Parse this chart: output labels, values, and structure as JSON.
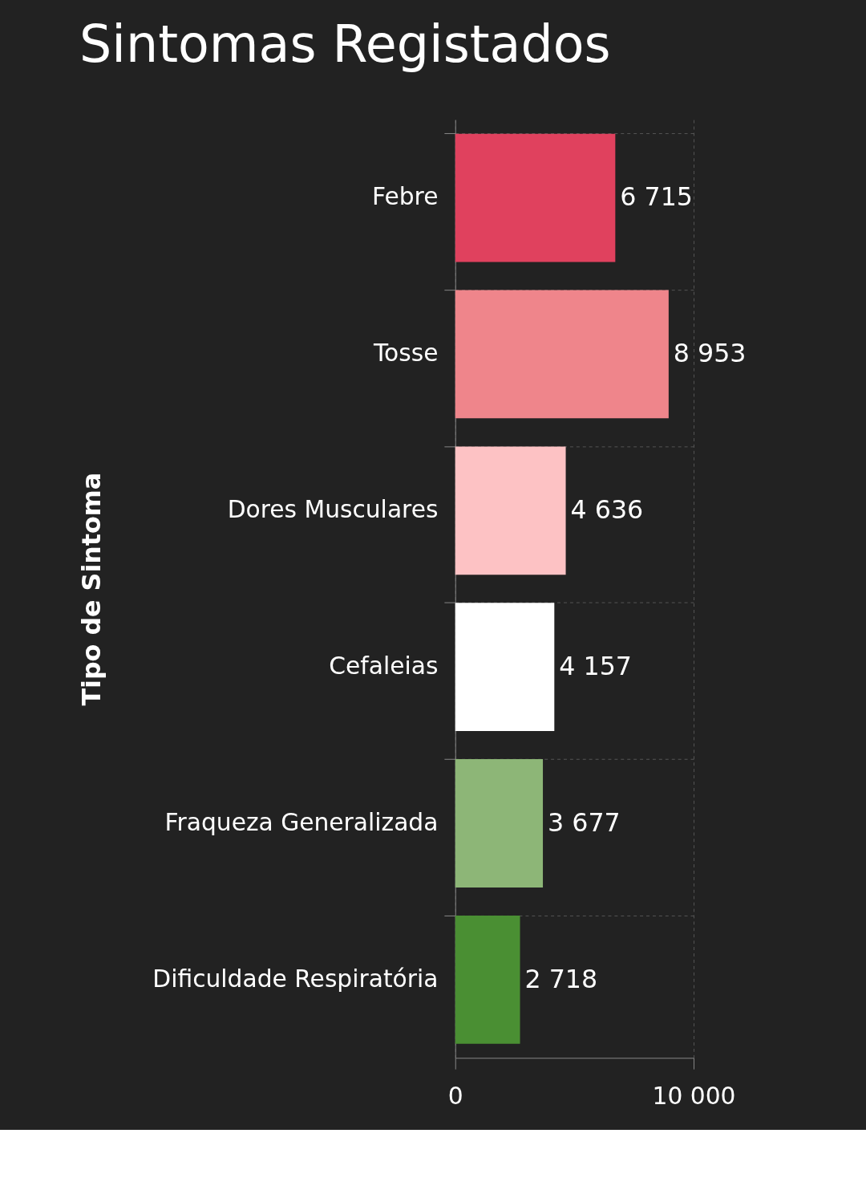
{
  "chart_data": {
    "type": "bar",
    "orientation": "horizontal",
    "title": "Sintomas Registados",
    "ylabel": "Tipo de Sintoma",
    "categories": [
      "Febre",
      "Tosse",
      "Dores Musculares",
      "Cefaleias",
      "Fraqueza Generalizada",
      "Dificuldade Respiratória"
    ],
    "values": [
      6715,
      8953,
      4636,
      4157,
      3677,
      2718
    ],
    "colors": [
      "#e0415e",
      "#ef858b",
      "#fdc2c4",
      "#ffffff",
      "#8db677",
      "#4a8f33"
    ],
    "xlim": [
      0,
      10000
    ],
    "xticks": [
      0,
      10000
    ],
    "grid": true,
    "data_labels": true
  }
}
